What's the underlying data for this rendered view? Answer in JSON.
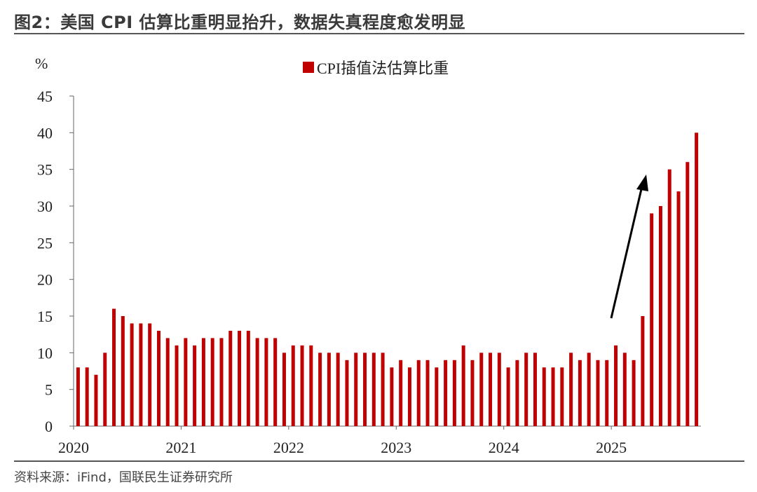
{
  "header": {
    "title": "图2：美国 CPI 估算比重明显抬升，数据失真程度愈发明显"
  },
  "footer": {
    "source": "资料来源：iFind，国联民生证券研究所"
  },
  "chart_data": {
    "type": "bar",
    "ylabel": "%",
    "ylim": [
      0,
      45
    ],
    "yticks": [
      0,
      5,
      10,
      15,
      20,
      25,
      30,
      35,
      40,
      45
    ],
    "xtick_labels": [
      "2020",
      "2021",
      "2022",
      "2023",
      "2024",
      "2025"
    ],
    "legend": "top-center",
    "grid": false,
    "bar_color": "#C00000",
    "arrow": "upward trend arrow over 2025 bars",
    "series": [
      {
        "name": "CPI插值法估算比重",
        "x": [
          "2020-01",
          "2020-02",
          "2020-03",
          "2020-04",
          "2020-05",
          "2020-06",
          "2020-07",
          "2020-08",
          "2020-09",
          "2020-10",
          "2020-11",
          "2020-12",
          "2021-01",
          "2021-02",
          "2021-03",
          "2021-04",
          "2021-05",
          "2021-06",
          "2021-07",
          "2021-08",
          "2021-09",
          "2021-10",
          "2021-11",
          "2021-12",
          "2022-01",
          "2022-02",
          "2022-03",
          "2022-04",
          "2022-05",
          "2022-06",
          "2022-07",
          "2022-08",
          "2022-09",
          "2022-10",
          "2022-11",
          "2022-12",
          "2023-01",
          "2023-02",
          "2023-03",
          "2023-04",
          "2023-05",
          "2023-06",
          "2023-07",
          "2023-08",
          "2023-09",
          "2023-10",
          "2023-11",
          "2023-12",
          "2024-01",
          "2024-02",
          "2024-03",
          "2024-04",
          "2024-05",
          "2024-06",
          "2024-07",
          "2024-08",
          "2024-09",
          "2024-10",
          "2024-11",
          "2024-12",
          "2025-01",
          "2025-02",
          "2025-03",
          "2025-04",
          "2025-05",
          "2025-06",
          "2025-07",
          "2025-08",
          "2025-09",
          "2025-10"
        ],
        "values": [
          8,
          8,
          7,
          10,
          16,
          15,
          14,
          14,
          14,
          13,
          12,
          11,
          12,
          11,
          12,
          12,
          12,
          13,
          13,
          13,
          12,
          12,
          12,
          10,
          11,
          11,
          11,
          10,
          10,
          10,
          9,
          10,
          10,
          10,
          10,
          8,
          9,
          8,
          9,
          9,
          8,
          9,
          9,
          11,
          9,
          10,
          10,
          10,
          8,
          9,
          10,
          10,
          8,
          8,
          8,
          10,
          9,
          10,
          9,
          9,
          11,
          10,
          9,
          15,
          29,
          30,
          35,
          32,
          36,
          40
        ]
      }
    ]
  }
}
